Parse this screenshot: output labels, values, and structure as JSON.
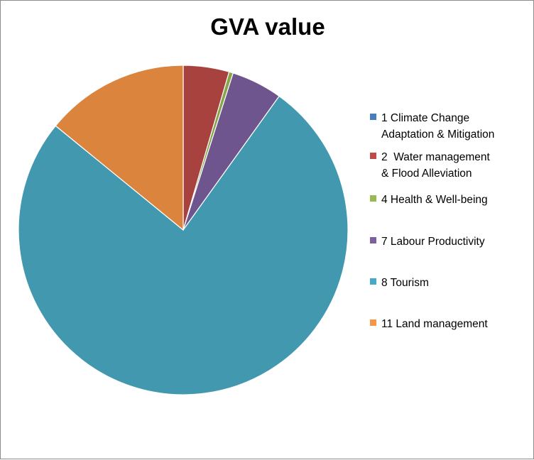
{
  "chart_data": {
    "type": "pie",
    "title": "GVA value",
    "categories": [
      "1 Climate Change Adaptation & Mitigation",
      "2  Water management & Flood Alleviation",
      "4 Health & Well-being",
      "7 Labour Productivity",
      "8 Tourism",
      "11 Land management"
    ],
    "legend_lines": [
      [
        "1 Climate Change",
        "Adaptation & Mitigation"
      ],
      [
        "2  Water management",
        "& Flood Alleviation"
      ],
      [
        "4 Health & Well-being"
      ],
      [
        "7 Labour Productivity"
      ],
      [
        "8 Tourism"
      ],
      [
        "11 Land management"
      ]
    ],
    "values": [
      0.0,
      4.5,
      0.4,
      5.0,
      76.0,
      14.1
    ],
    "colors": [
      "#4a7ebb",
      "#be4b48",
      "#98b954",
      "#7d60a0",
      "#46aac5",
      "#f79646"
    ],
    "slice_colors": [
      "#3f6b9e",
      "#a8423f",
      "#86a44a",
      "#6f558d",
      "#4198af",
      "#db843d"
    ],
    "legend_position": "right"
  }
}
